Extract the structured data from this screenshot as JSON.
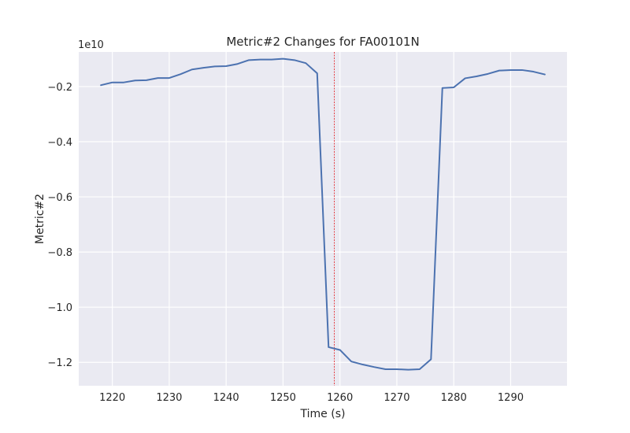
{
  "chart_data": {
    "type": "line",
    "title": "Metric#2 Changes for FA00101N",
    "xlabel": "Time (s)",
    "ylabel": "Metric#2",
    "y_scale_label": "1e10",
    "xlim": [
      1214.1,
      1299.9
    ],
    "ylim": [
      -1.285,
      -0.0745
    ],
    "x_ticks": [
      1220,
      1230,
      1240,
      1250,
      1260,
      1270,
      1280,
      1290
    ],
    "x_tick_labels": [
      "1220",
      "1230",
      "1240",
      "1250",
      "1260",
      "1270",
      "1280",
      "1290"
    ],
    "y_ticks": [
      -0.2,
      -0.4,
      -0.6,
      -0.8,
      -1.0,
      -1.2
    ],
    "y_tick_labels": [
      "−0.2",
      "−0.4",
      "−0.6",
      "−0.8",
      "−1.0",
      "−1.2"
    ],
    "grid": true,
    "series": [
      {
        "color": "#4c72b0",
        "x": [
          1218,
          1220,
          1222,
          1224,
          1226,
          1228,
          1230,
          1232,
          1234,
          1236,
          1238,
          1240,
          1242,
          1244,
          1246,
          1248,
          1250,
          1252,
          1254,
          1256,
          1258,
          1260,
          1262,
          1264,
          1266,
          1268,
          1270,
          1272,
          1274,
          1276,
          1278,
          1280,
          1282,
          1284,
          1286,
          1288,
          1290,
          1292,
          1294,
          1296
        ],
        "y": [
          -0.195,
          -0.185,
          -0.185,
          -0.178,
          -0.177,
          -0.169,
          -0.169,
          -0.155,
          -0.138,
          -0.132,
          -0.127,
          -0.126,
          -0.118,
          -0.104,
          -0.102,
          -0.102,
          -0.099,
          -0.104,
          -0.115,
          -0.152,
          -1.145,
          -1.155,
          -1.197,
          -1.208,
          -1.217,
          -1.225,
          -1.225,
          -1.227,
          -1.225,
          -1.189,
          -0.205,
          -0.203,
          -0.17,
          -0.163,
          -0.154,
          -0.142,
          -0.14,
          -0.14,
          -0.146,
          -0.156
        ]
      }
    ],
    "vlines": [
      {
        "x": 1259,
        "color": "#e31a1c",
        "style": "dashed"
      }
    ]
  }
}
